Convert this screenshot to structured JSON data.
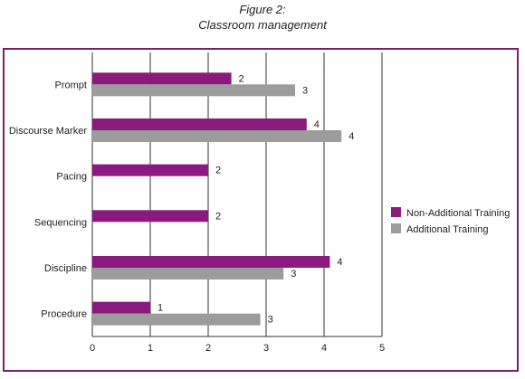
{
  "figure": {
    "label": "Figure 2:",
    "title": "Classroom management"
  },
  "colors": {
    "series_non_additional": "#8b1a7e",
    "series_additional": "#9c9c9c",
    "frame": "#7a1e6a",
    "gridline": "#333333"
  },
  "chart_data": {
    "type": "bar",
    "orientation": "horizontal",
    "title": "Classroom management",
    "categories": [
      "Prompt",
      "Discourse Marker",
      "Pacing",
      "Sequencing",
      "Discipline",
      "Procedure"
    ],
    "series": [
      {
        "name": "Non-Additional Training",
        "values": [
          2.4,
          3.7,
          2.0,
          2.0,
          4.1,
          1.0
        ],
        "labels": [
          "2",
          "4",
          "2",
          "2",
          "4",
          "1"
        ]
      },
      {
        "name": "Additional Training",
        "values": [
          3.5,
          4.3,
          null,
          null,
          3.3,
          2.9
        ],
        "labels": [
          "3",
          "4",
          "",
          "",
          "3",
          "3"
        ]
      }
    ],
    "xlim": [
      0,
      5
    ],
    "xticks": [
      "0",
      "1",
      "2",
      "3",
      "4",
      "5"
    ],
    "grid": true,
    "legend_position": "right"
  }
}
